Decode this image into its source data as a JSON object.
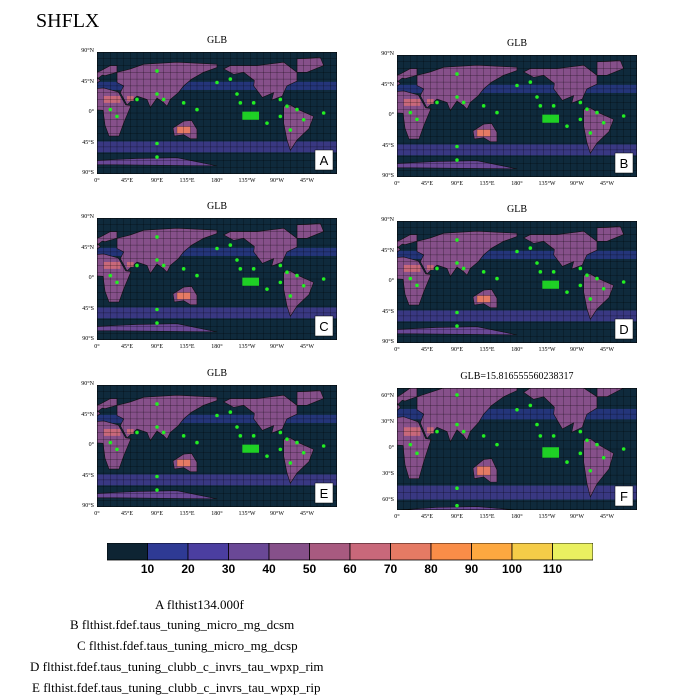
{
  "figure": {
    "title": "SHFLX",
    "legend_lines": [
      "A  flthist134.000f",
      "B  flthist.fdef.taus_tuning_micro_mg_dcsm",
      "C  flthist.fdef.taus_tuning_micro_mg_dcsp",
      "D  flthist.fdef.taus_tuning_clubb_c_invrs_tau_wpxp_rim",
      "E  flthist.fdef.taus_tuning_clubb_c_invrs_tau_wpxp_rip"
    ]
  },
  "colors": {
    "ocean": "#0f2a3c",
    "grid": "#000000",
    "marker": "#22ee22",
    "colorbar": [
      "#0e2433",
      "#142d66",
      "#2e3a94",
      "#4b3ea0",
      "#6a4896",
      "#86508a",
      "#a85a80",
      "#c8687a",
      "#e57a64",
      "#f98d48",
      "#fda840",
      "#f5cc48",
      "#eaf060"
    ]
  },
  "chart_data": [
    {
      "type": "heatmap",
      "panel": "A",
      "title": "GLB",
      "lat_ticks": [
        "90°N",
        "45°N",
        "0°",
        "45°S",
        "90°S"
      ],
      "lon_ticks": [
        "0°",
        "45°E",
        "90°E",
        "135°E",
        "180°",
        "135°W",
        "90°W",
        "45°W"
      ],
      "ylim": [
        -90,
        90
      ],
      "xlim": [
        0,
        360
      ]
    },
    {
      "type": "heatmap",
      "panel": "B",
      "title": "GLB",
      "lat_ticks": [
        "90°N",
        "45°N",
        "0°",
        "45°S",
        "90°S"
      ],
      "lon_ticks": [
        "0°",
        "45°E",
        "90°E",
        "135°E",
        "180°",
        "135°W",
        "90°W",
        "45°W"
      ],
      "ylim": [
        -90,
        90
      ],
      "xlim": [
        0,
        360
      ]
    },
    {
      "type": "heatmap",
      "panel": "C",
      "title": "GLB",
      "lat_ticks": [
        "90°N",
        "45°N",
        "0°",
        "45°S",
        "90°S"
      ],
      "lon_ticks": [
        "0°",
        "45°E",
        "90°E",
        "135°E",
        "180°",
        "135°W",
        "90°W",
        "45°W"
      ],
      "ylim": [
        -90,
        90
      ],
      "xlim": [
        0,
        360
      ]
    },
    {
      "type": "heatmap",
      "panel": "D",
      "title": "GLB",
      "lat_ticks": [
        "90°N",
        "45°N",
        "0°",
        "45°S",
        "90°S"
      ],
      "lon_ticks": [
        "0°",
        "45°E",
        "90°E",
        "135°E",
        "180°",
        "135°W",
        "90°W",
        "45°W"
      ],
      "ylim": [
        -90,
        90
      ],
      "xlim": [
        0,
        360
      ]
    },
    {
      "type": "heatmap",
      "panel": "E",
      "title": "GLB",
      "lat_ticks": [
        "90°N",
        "45°N",
        "0°",
        "45°S",
        "90°S"
      ],
      "lon_ticks": [
        "0°",
        "45°E",
        "90°E",
        "135°E",
        "180°",
        "135°W",
        "90°W",
        "45°W"
      ],
      "ylim": [
        -90,
        90
      ],
      "xlim": [
        0,
        360
      ]
    },
    {
      "type": "heatmap",
      "panel": "F",
      "title": "GLB=15.816555560238317",
      "lat_ticks": [
        "60°N",
        "30°N",
        "0°",
        "30°S",
        "60°S"
      ],
      "lon_ticks": [
        "0°",
        "45°E",
        "90°E",
        "135°E",
        "180°",
        "135°W",
        "90°W",
        "45°W"
      ],
      "ylim": [
        -70,
        70
      ],
      "xlim": [
        0,
        360
      ]
    }
  ],
  "colorbar": {
    "labels": [
      "10",
      "20",
      "30",
      "40",
      "50",
      "60",
      "70",
      "80",
      "90",
      "100",
      "110"
    ]
  }
}
